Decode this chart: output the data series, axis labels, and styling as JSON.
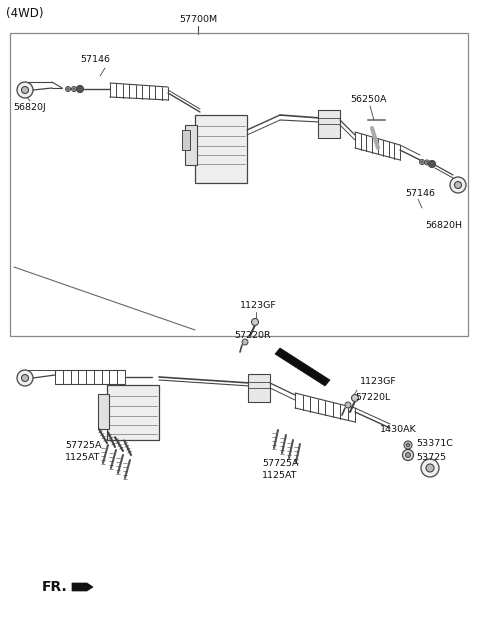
{
  "bg_color": "#ffffff",
  "lc": "#444444",
  "tc": "#111111",
  "fs": 6.8,
  "fs_title": 8.5,
  "title_4wd": "(4WD)",
  "label_57700M": "57700M",
  "label_57146_tl": "57146",
  "label_56820J": "56820J",
  "label_56250A": "56250A",
  "label_57146_r": "57146",
  "label_56820H": "56820H",
  "label_1123GF_t": "1123GF",
  "label_57220R": "57220R",
  "label_1123GF_r": "1123GF",
  "label_57220L": "57220L",
  "label_57725A_l": "57725A",
  "label_1125AT_l": "1125AT",
  "label_57725A_b": "57725A",
  "label_1125AT_b": "1125AT",
  "label_1430AK": "1430AK",
  "label_53371C": "53371C",
  "label_53725": "53725",
  "label_FR": "FR."
}
